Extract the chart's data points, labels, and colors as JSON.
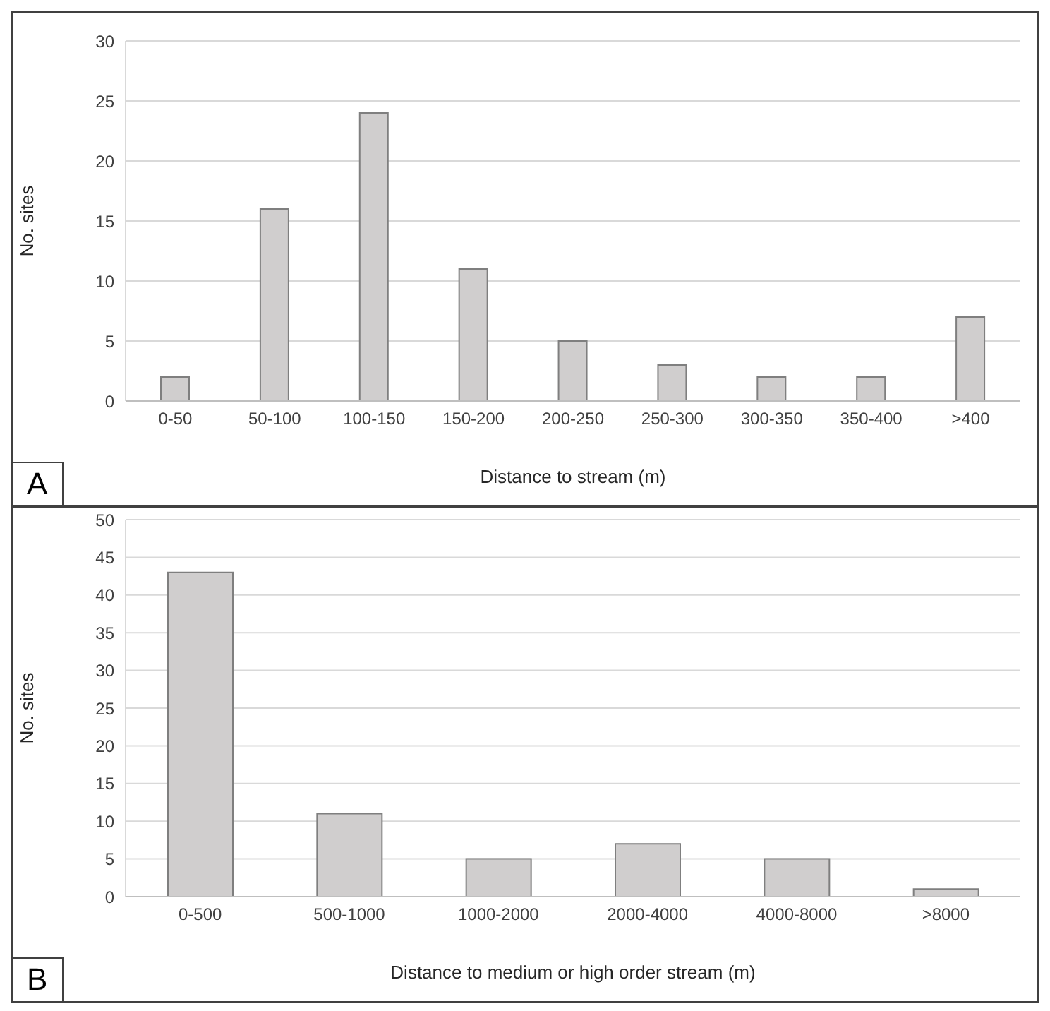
{
  "chart_data": [
    {
      "type": "bar",
      "xlabel": "Distance to stream (m)",
      "ylabel": "No. sites",
      "categories": [
        "0-50",
        "50-100",
        "100-150",
        "150-200",
        "200-250",
        "250-300",
        "300-350",
        "350-400",
        ">400"
      ],
      "values": [
        2,
        16,
        24,
        11,
        5,
        3,
        2,
        2,
        7
      ],
      "color": "#d0cece",
      "ylim": [
        0,
        30
      ],
      "yticks": [
        0,
        5,
        10,
        15,
        20,
        25,
        30
      ],
      "grid": "y",
      "annotations": [
        "A"
      ]
    },
    {
      "type": "bar",
      "xlabel": "Distance to medium or high order stream (m)",
      "ylabel": "No. sites",
      "categories": [
        "0-500",
        "500-1000",
        "1000-2000",
        "2000-4000",
        "4000-8000",
        ">8000"
      ],
      "values": [
        43,
        11,
        5,
        7,
        5,
        1
      ],
      "color": "#d0cece",
      "ylim": [
        0,
        50
      ],
      "yticks": [
        0,
        5,
        10,
        15,
        20,
        25,
        30,
        35,
        40,
        45,
        50
      ],
      "grid": "y",
      "annotations": [
        "B"
      ]
    }
  ]
}
